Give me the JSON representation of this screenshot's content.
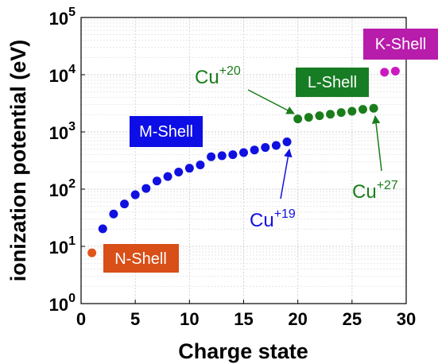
{
  "chart_data": {
    "type": "scatter",
    "xlabel": "Charge state",
    "ylabel": "ionization potential (eV)",
    "xlim": [
      0,
      30
    ],
    "ylim": [
      1,
      100000
    ],
    "y_scale": "log",
    "grid": true,
    "x_ticks": [
      "0",
      "5",
      "10",
      "15",
      "20",
      "25",
      "30"
    ],
    "y_ticks": [
      {
        "base": "10",
        "exp": "0"
      },
      {
        "base": "10",
        "exp": "1"
      },
      {
        "base": "10",
        "exp": "2"
      },
      {
        "base": "10",
        "exp": "3"
      },
      {
        "base": "10",
        "exp": "4"
      },
      {
        "base": "10",
        "exp": "5"
      }
    ],
    "series": [
      {
        "color": "#e0551b",
        "x": [
          1
        ],
        "y": [
          7.7
        ]
      },
      {
        "color": "#1010e0",
        "x": [
          2,
          3,
          4,
          5,
          6,
          7,
          8,
          9,
          10,
          11,
          12,
          13,
          14,
          15,
          16,
          17,
          18,
          19
        ],
        "y": [
          20.3,
          36.8,
          55.2,
          79.8,
          103,
          139,
          166,
          199,
          232,
          265,
          368,
          384,
          401,
          435,
          484,
          535,
          581,
          670
        ]
      },
      {
        "color": "#1a7d1a",
        "x": [
          20,
          21,
          22,
          23,
          24,
          25,
          26,
          27
        ],
        "y": [
          1690,
          1800,
          1920,
          2040,
          2180,
          2300,
          2480,
          2590
        ]
      },
      {
        "color": "#cc19c0",
        "x": [
          28,
          29
        ],
        "y": [
          11062,
          11567
        ]
      }
    ],
    "shell_labels": [
      {
        "text": "N-Shell",
        "bg": "#d84f17"
      },
      {
        "text": "M-Shell",
        "bg": "#0d0de6"
      },
      {
        "text": "L-Shell",
        "bg": "#177d24"
      },
      {
        "text": "K-Shell",
        "bg": "#b81cab"
      }
    ],
    "annotations": [
      {
        "base": "Cu",
        "sup": "+20",
        "color": "#1a7d1a"
      },
      {
        "base": "Cu",
        "sup": "+19",
        "color": "#1010e0"
      },
      {
        "base": "Cu",
        "sup": "+27",
        "color": "#1a7d1a"
      }
    ]
  }
}
